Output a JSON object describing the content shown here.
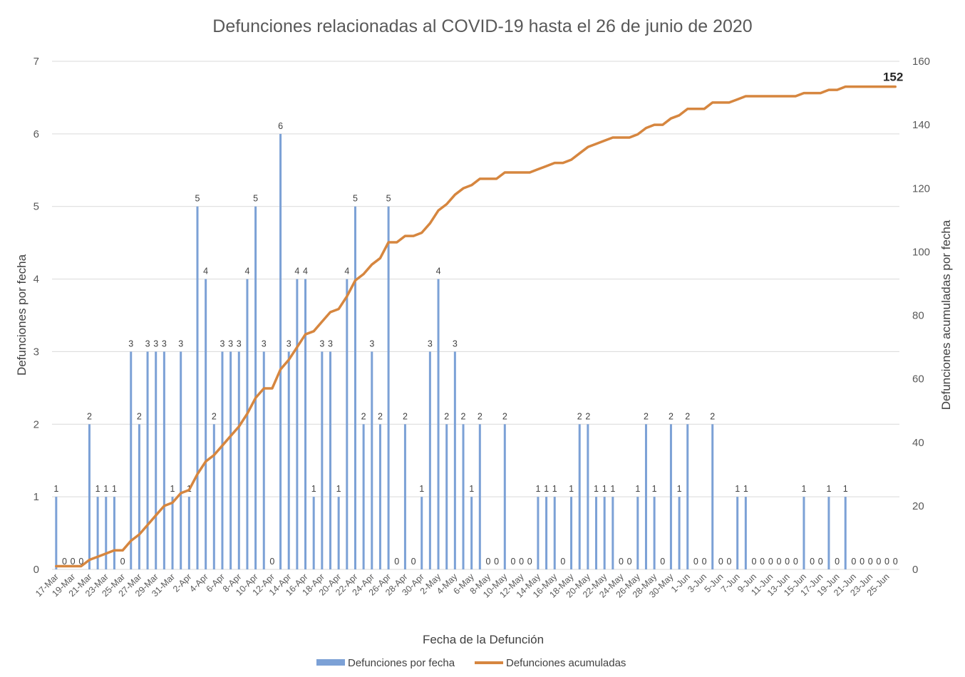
{
  "chart_data": {
    "type": "bar+line",
    "title": "Defunciones relacionadas al COVID-19 hasta el 26 de junio de 2020",
    "xlabel": "Fecha de la Defunción",
    "ylabel_left": "Defunciones por fecha",
    "ylabel_right": "Defunciones acumuladas por fecha",
    "ylim_left": [
      0,
      7
    ],
    "ylim_right": [
      0,
      160
    ],
    "yticks_left": [
      0,
      1,
      2,
      3,
      4,
      5,
      6,
      7
    ],
    "yticks_right": [
      0,
      20,
      40,
      60,
      80,
      100,
      120,
      140,
      160
    ],
    "grid": true,
    "legend_position": "bottom",
    "colors": {
      "bars": "#7ca1d6",
      "line": "#d6863f",
      "grid": "#d9d9d9"
    },
    "categories": [
      "17-Mar",
      "18-Mar",
      "19-Mar",
      "20-Mar",
      "21-Mar",
      "22-Mar",
      "23-Mar",
      "24-Mar",
      "25-Mar",
      "26-Mar",
      "27-Mar",
      "28-Mar",
      "29-Mar",
      "30-Mar",
      "31-Mar",
      "1-Apr",
      "2-Apr",
      "3-Apr",
      "4-Apr",
      "5-Apr",
      "6-Apr",
      "7-Apr",
      "8-Apr",
      "9-Apr",
      "10-Apr",
      "11-Apr",
      "12-Apr",
      "13-Apr",
      "14-Apr",
      "15-Apr",
      "16-Apr",
      "17-Apr",
      "18-Apr",
      "19-Apr",
      "20-Apr",
      "21-Apr",
      "22-Apr",
      "23-Apr",
      "24-Apr",
      "25-Apr",
      "26-Apr",
      "27-Apr",
      "28-Apr",
      "29-Apr",
      "30-Apr",
      "1-May",
      "2-May",
      "3-May",
      "4-May",
      "5-May",
      "6-May",
      "7-May",
      "8-May",
      "9-May",
      "10-May",
      "11-May",
      "12-May",
      "13-May",
      "14-May",
      "15-May",
      "16-May",
      "17-May",
      "18-May",
      "19-May",
      "20-May",
      "21-May",
      "22-May",
      "23-May",
      "24-May",
      "25-May",
      "26-May",
      "27-May",
      "28-May",
      "29-May",
      "30-May",
      "31-May",
      "1-Jun",
      "2-Jun",
      "3-Jun",
      "4-Jun",
      "5-Jun",
      "6-Jun",
      "7-Jun",
      "8-Jun",
      "9-Jun",
      "10-Jun",
      "11-Jun",
      "12-Jun",
      "13-Jun",
      "14-Jun",
      "15-Jun",
      "16-Jun",
      "17-Jun",
      "18-Jun",
      "19-Jun",
      "20-Jun",
      "21-Jun",
      "22-Jun",
      "23-Jun",
      "24-Jun",
      "25-Jun",
      "26-Jun"
    ],
    "tick_labels": [
      "17-Mar",
      "19-Mar",
      "21-Mar",
      "23-Mar",
      "25-Mar",
      "27-Mar",
      "29-Mar",
      "31-Mar",
      "2-Apr",
      "4-Apr",
      "6-Apr",
      "8-Apr",
      "10-Apr",
      "12-Apr",
      "14-Apr",
      "16-Apr",
      "18-Apr",
      "20-Apr",
      "22-Apr",
      "24-Apr",
      "26-Apr",
      "28-Apr",
      "30-Apr",
      "2-May",
      "4-May",
      "6-May",
      "8-May",
      "10-May",
      "12-May",
      "14-May",
      "16-May",
      "18-May",
      "20-May",
      "22-May",
      "24-May",
      "26-May",
      "28-May",
      "30-May",
      "1-Jun",
      "3-Jun",
      "5-Jun",
      "7-Jun",
      "9-Jun",
      "11-Jun",
      "13-Jun",
      "15-Jun",
      "17-Jun",
      "19-Jun",
      "21-Jun",
      "23-Jun",
      "25-Jun"
    ],
    "series": [
      {
        "name": "Defunciones por fecha",
        "type": "bar",
        "axis": "left",
        "values": [
          1,
          0,
          0,
          0,
          2,
          1,
          1,
          1,
          0,
          3,
          2,
          3,
          3,
          3,
          1,
          3,
          1,
          5,
          4,
          2,
          3,
          3,
          3,
          4,
          5,
          3,
          0,
          6,
          3,
          4,
          4,
          1,
          3,
          3,
          1,
          4,
          5,
          2,
          3,
          2,
          5,
          0,
          2,
          0,
          1,
          3,
          4,
          2,
          3,
          2,
          1,
          2,
          0,
          0,
          2,
          0,
          0,
          0,
          1,
          1,
          1,
          0,
          1,
          2,
          2,
          1,
          1,
          1,
          0,
          0,
          1,
          2,
          1,
          0,
          2,
          1,
          2,
          0,
          0,
          2,
          0,
          0,
          1,
          1,
          0,
          0,
          0,
          0,
          0,
          0,
          1,
          0,
          0,
          1,
          0,
          1,
          0,
          0,
          0,
          0,
          0,
          0
        ]
      },
      {
        "name": "Defunciones acumuladas",
        "type": "line",
        "axis": "right",
        "values": [
          1,
          1,
          1,
          1,
          3,
          4,
          5,
          6,
          6,
          9,
          11,
          14,
          17,
          20,
          21,
          24,
          25,
          30,
          34,
          36,
          39,
          42,
          45,
          49,
          54,
          57,
          57,
          63,
          66,
          70,
          74,
          75,
          78,
          81,
          82,
          86,
          91,
          93,
          96,
          98,
          103,
          103,
          105,
          105,
          106,
          109,
          113,
          115,
          118,
          120,
          121,
          123,
          123,
          123,
          125,
          125,
          125,
          125,
          126,
          127,
          128,
          128,
          129,
          131,
          133,
          134,
          135,
          136,
          136,
          136,
          137,
          139,
          140,
          140,
          142,
          143,
          145,
          145,
          145,
          147,
          147,
          147,
          148,
          149,
          149,
          149,
          149,
          149,
          149,
          149,
          150,
          150,
          150,
          151,
          151,
          152,
          152,
          152,
          152,
          152,
          152,
          152
        ]
      }
    ],
    "annotation_last": "152"
  }
}
